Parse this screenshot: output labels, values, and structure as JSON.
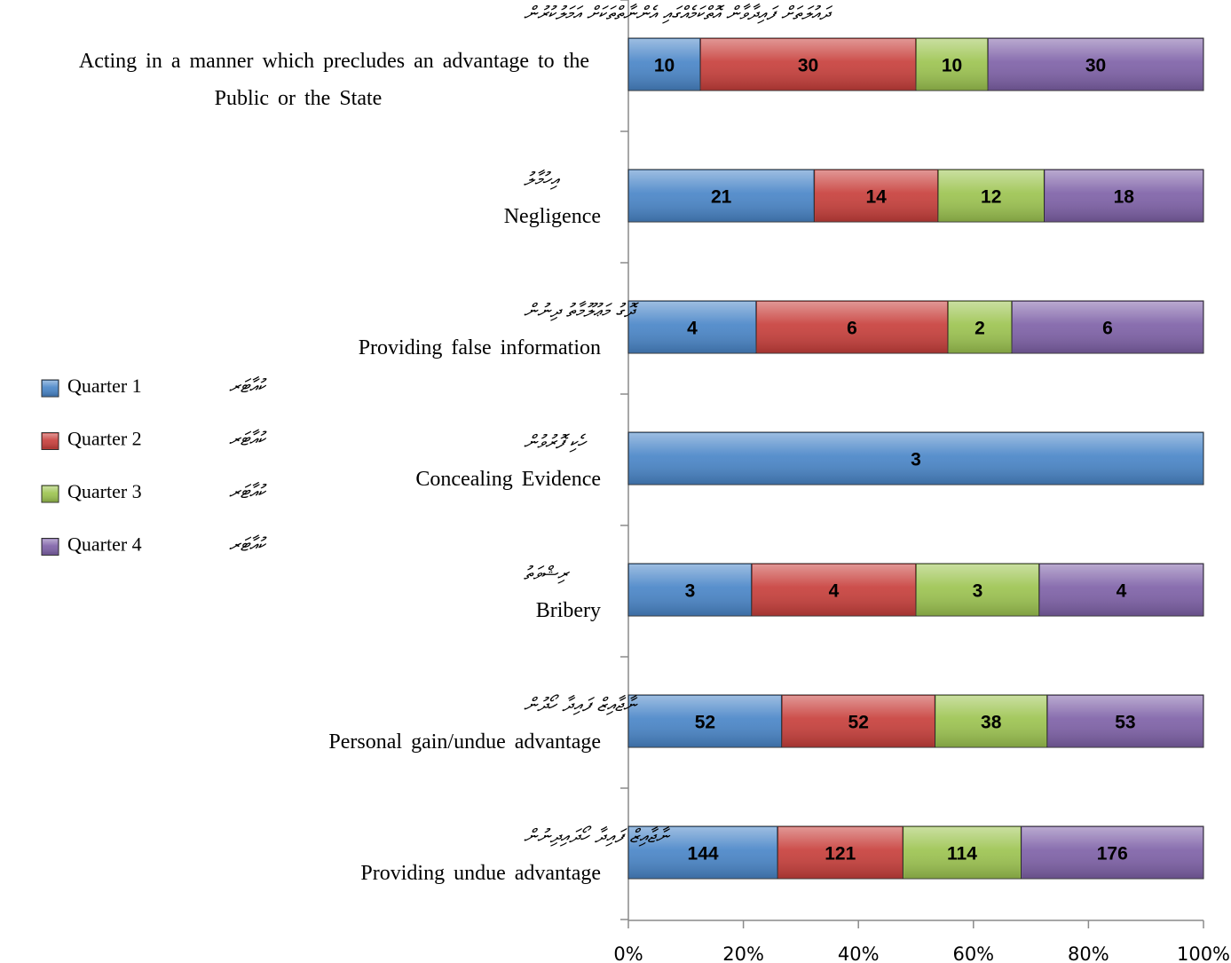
{
  "chart_data": {
    "type": "bar",
    "orientation": "horizontal",
    "stacking": "percent",
    "categories": [
      {
        "label": "Acting in a manner which precludes an advantage to the Public or the State",
        "label_dv": "ދައުލަތަށް ފައިދާވާން އޮތްކަމެއްގައި އެންނާތްތަކަށް އަމަލުކުރުން"
      },
      {
        "label": "Negligence",
        "label_dv": "އިހުމާލު"
      },
      {
        "label": "Providing false information",
        "label_dv": "ދޮގު މަޢުލޫމާތު ދިނުން"
      },
      {
        "label": "Concealing Evidence",
        "label_dv": "ހެކި ފޮރުވުން"
      },
      {
        "label": "Bribery",
        "label_dv": "ރިޝްވަތު"
      },
      {
        "label": "Personal gain/undue advantage",
        "label_dv": "ނާޖާއިޒް ފައިދާ ހޯދުން"
      },
      {
        "label": "Providing undue advantage",
        "label_dv": "ނާޖާއިޒް ފައިދާ ހޯދައިދިނުން"
      }
    ],
    "series": [
      {
        "name": "Quarter 1",
        "name_dv": "ކުއާޓަރ",
        "color": "#4a86c8",
        "values": [
          10,
          21,
          4,
          3,
          3,
          52,
          144
        ]
      },
      {
        "name": "Quarter 2",
        "name_dv": "ކުއާޓަރ",
        "color": "#c8403c",
        "values": [
          30,
          14,
          6,
          0,
          4,
          52,
          121
        ]
      },
      {
        "name": "Quarter 3",
        "name_dv": "ކުއާޓަރ",
        "color": "#9dc451",
        "values": [
          10,
          12,
          2,
          0,
          3,
          38,
          114
        ]
      },
      {
        "name": "Quarter 4",
        "name_dv": "ކުއާޓަރ",
        "color": "#7f62a8",
        "values": [
          30,
          18,
          6,
          0,
          4,
          53,
          176
        ]
      }
    ],
    "x_ticks": [
      "0%",
      "20%",
      "40%",
      "60%",
      "80%",
      "100%"
    ],
    "xlim": [
      0,
      100
    ],
    "grid": false,
    "legend_position": "left"
  }
}
